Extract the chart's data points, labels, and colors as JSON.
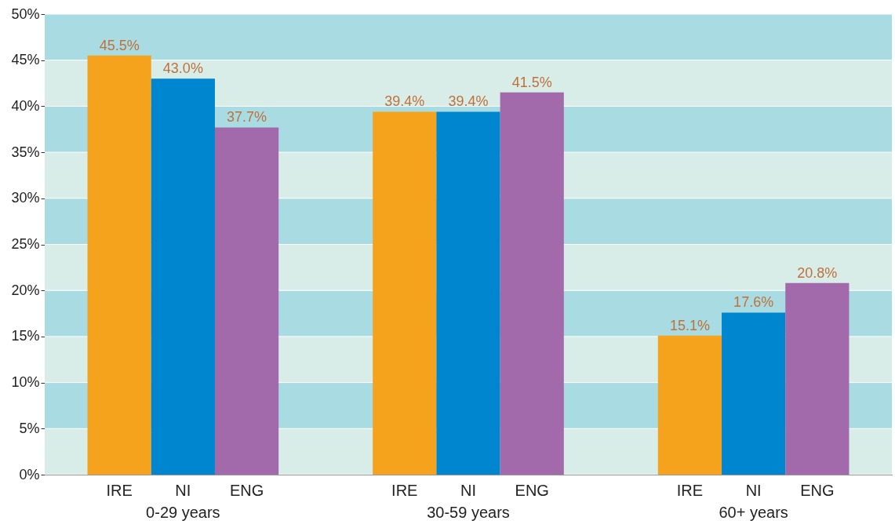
{
  "chart_data": {
    "type": "bar",
    "categories": [
      "0-29 years",
      "30-59 years",
      "60+ years"
    ],
    "series": [
      {
        "name": "IRE",
        "color": "#f5a31c",
        "values": [
          45.5,
          39.4,
          15.1
        ]
      },
      {
        "name": "NI",
        "color": "#0086cf",
        "values": [
          43.0,
          39.4,
          17.6
        ]
      },
      {
        "name": "ENG",
        "color": "#a26aab",
        "values": [
          37.7,
          41.5,
          20.8
        ]
      }
    ],
    "ylim": [
      0,
      50
    ],
    "yticks": [
      {
        "value": 0,
        "label": "0%"
      },
      {
        "value": 5,
        "label": "5%"
      },
      {
        "value": 10,
        "label": "10%"
      },
      {
        "value": 15,
        "label": "15%"
      },
      {
        "value": 20,
        "label": "20%"
      },
      {
        "value": 25,
        "label": "25%"
      },
      {
        "value": 30,
        "label": "30%"
      },
      {
        "value": 35,
        "label": "35%"
      },
      {
        "value": 40,
        "label": "40%"
      },
      {
        "value": 45,
        "label": "45%"
      },
      {
        "value": 50,
        "label": "50%"
      }
    ],
    "value_labels": [
      [
        "45.5%",
        "39.4%",
        "15.1%"
      ],
      [
        "43.0%",
        "39.4%",
        "17.6%"
      ],
      [
        "37.7%",
        "41.5%",
        "20.8%"
      ]
    ],
    "grid": "y",
    "bands": [
      {
        "axis": "y",
        "from": 0,
        "to": 5,
        "color": "#d8ece8"
      },
      {
        "axis": "y",
        "from": 5,
        "to": 10,
        "color": "#a9dbe2"
      },
      {
        "axis": "y",
        "from": 10,
        "to": 15,
        "color": "#d8ece8"
      },
      {
        "axis": "y",
        "from": 15,
        "to": 20,
        "color": "#a9dbe2"
      },
      {
        "axis": "y",
        "from": 20,
        "to": 25,
        "color": "#d8ece8"
      },
      {
        "axis": "y",
        "from": 25,
        "to": 30,
        "color": "#a9dbe2"
      },
      {
        "axis": "y",
        "from": 30,
        "to": 35,
        "color": "#d8ece8"
      },
      {
        "axis": "y",
        "from": 35,
        "to": 40,
        "color": "#a9dbe2"
      },
      {
        "axis": "y",
        "from": 40,
        "to": 45,
        "color": "#d8ece8"
      },
      {
        "axis": "y",
        "from": 45,
        "to": 50,
        "color": "#a9dbe2"
      }
    ]
  }
}
